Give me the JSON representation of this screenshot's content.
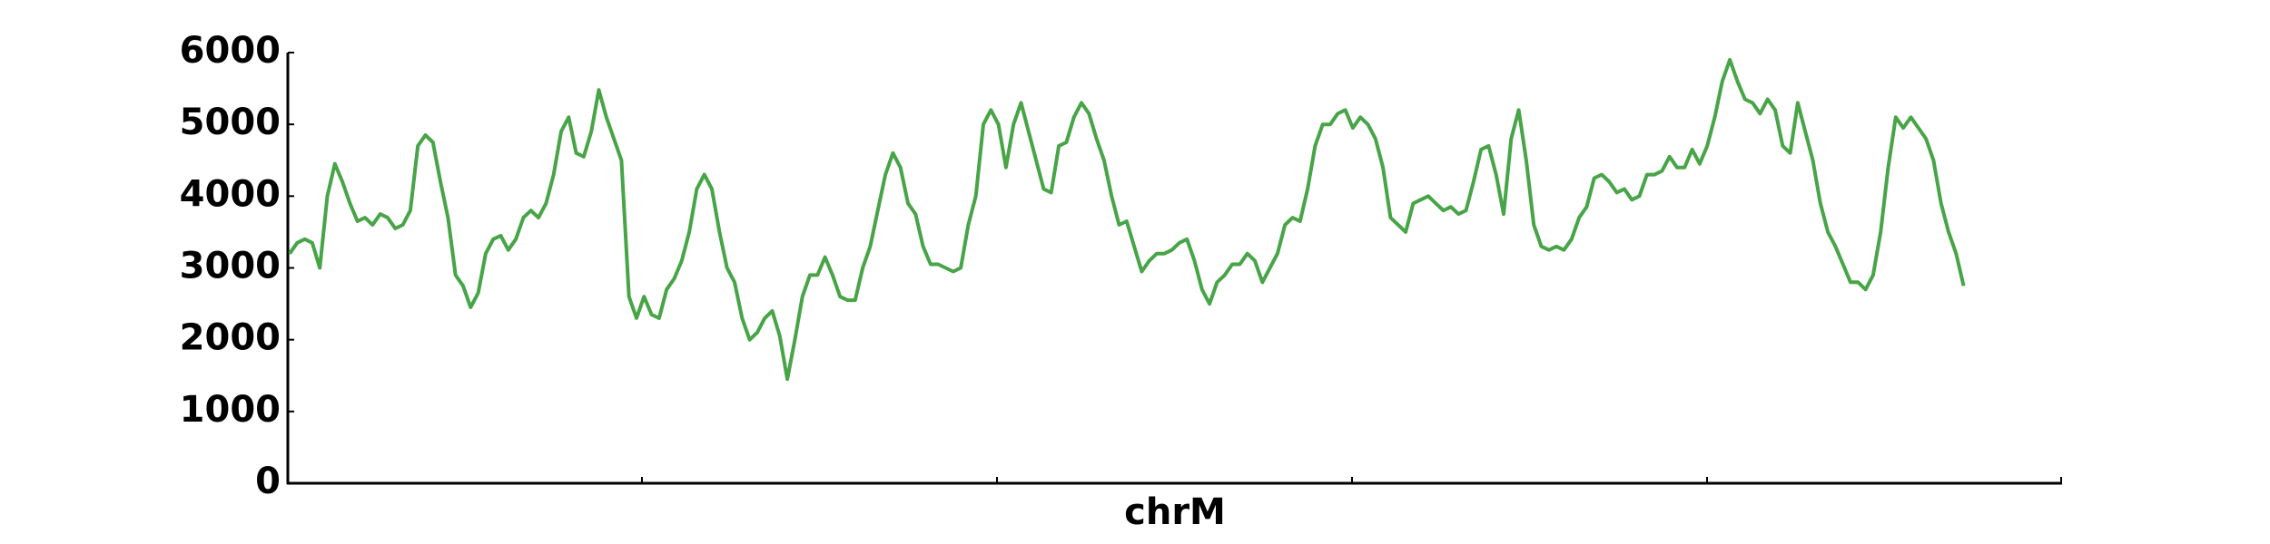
{
  "chart_data": {
    "type": "line",
    "xlabel": "chrM",
    "ylim": [
      0,
      6000
    ],
    "yticks": [
      0,
      1000,
      2000,
      3000,
      4000,
      5000,
      6000
    ],
    "series": [
      {
        "color": "#47a447",
        "values": [
          3200,
          3350,
          3400,
          3350,
          3000,
          4000,
          4450,
          4200,
          3900,
          3650,
          3700,
          3600,
          3750,
          3700,
          3550,
          3600,
          3800,
          4700,
          4850,
          4750,
          4200,
          3700,
          2900,
          2750,
          2450,
          2650,
          3200,
          3400,
          3450,
          3250,
          3400,
          3700,
          3800,
          3700,
          3900,
          4300,
          4900,
          5100,
          4600,
          4550,
          4900,
          5480,
          5100,
          4800,
          4500,
          2600,
          2300,
          2600,
          2350,
          2300,
          2700,
          2850,
          3100,
          3500,
          4100,
          4300,
          4100,
          3500,
          3000,
          2800,
          2300,
          2000,
          2100,
          2300,
          2400,
          2050,
          1450,
          2000,
          2600,
          2900,
          2900,
          3150,
          2900,
          2600,
          2550,
          2550,
          3000,
          3300,
          3800,
          4300,
          4600,
          4400,
          3900,
          3750,
          3300,
          3050,
          3050,
          3000,
          2950,
          3000,
          3600,
          4000,
          5000,
          5200,
          5000,
          4400,
          5000,
          5300,
          4900,
          4500,
          4100,
          4050,
          4700,
          4750,
          5100,
          5300,
          5150,
          4800,
          4500,
          4000,
          3600,
          3650,
          3300,
          2950,
          3100,
          3200,
          3200,
          3250,
          3350,
          3400,
          3100,
          2700,
          2500,
          2800,
          2900,
          3050,
          3050,
          3200,
          3100,
          2800,
          3000,
          3200,
          3600,
          3700,
          3650,
          4100,
          4700,
          5000,
          5000,
          5150,
          5200,
          4950,
          5100,
          5000,
          4800,
          4400,
          3700,
          3600,
          3500,
          3900,
          3950,
          4000,
          3900,
          3800,
          3850,
          3750,
          3800,
          4200,
          4650,
          4700,
          4300,
          3750,
          4800,
          5200,
          4500,
          3600,
          3300,
          3250,
          3300,
          3250,
          3400,
          3700,
          3850,
          4250,
          4300,
          4200,
          4050,
          4100,
          3950,
          4000,
          4300,
          4300,
          4350,
          4550,
          4400,
          4400,
          4650,
          4450,
          4700,
          5100,
          5600,
          5900,
          5600,
          5350,
          5300,
          5150,
          5350,
          5200,
          4700,
          4600,
          5300,
          4900,
          4500,
          3900,
          3500,
          3300,
          3050,
          2800,
          2800,
          2700,
          2900,
          3500,
          4400,
          5100,
          4950,
          5100,
          4950,
          4800,
          4500,
          3900,
          3500,
          3200,
          2750
        ]
      }
    ]
  }
}
